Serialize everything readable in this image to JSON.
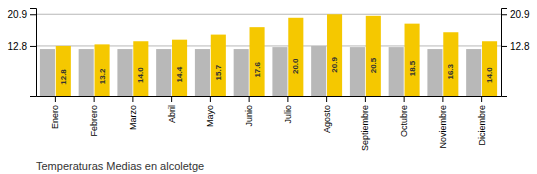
{
  "chart_data": {
    "type": "bar",
    "title": "Temperaturas Medias en alcoletge",
    "categories": [
      "Enero",
      "Febrero",
      "Marzo",
      "Abril",
      "Mayo",
      "Junio",
      "Julio",
      "Agosto",
      "Septiembre",
      "Octubre",
      "Noviembre",
      "Diciembre"
    ],
    "series": [
      {
        "color": "#B8B8B8",
        "values": [
          12.0,
          12.0,
          12.0,
          12.0,
          12.0,
          12.0,
          12.5,
          12.8,
          12.5,
          12.5,
          12.0,
          12.0
        ]
      },
      {
        "color": "#F5C800",
        "values": [
          12.8,
          13.2,
          14.0,
          14.4,
          15.7,
          17.6,
          20.0,
          20.9,
          20.5,
          18.5,
          16.3,
          14.0
        ],
        "data_labels": true,
        "value_labels": [
          "12.8",
          "13.2",
          "14.0",
          "14.4",
          "15.7",
          "17.6",
          "20.0",
          "20.9",
          "20.5",
          "18.5",
          "16.3",
          "14.0"
        ]
      }
    ],
    "ylim": [
      0,
      22.5
    ],
    "yticks": [
      12.8,
      20.9
    ],
    "y2lim": [
      0,
      22.5
    ],
    "y2ticks": [
      12.8,
      20.9
    ],
    "grid": true
  }
}
